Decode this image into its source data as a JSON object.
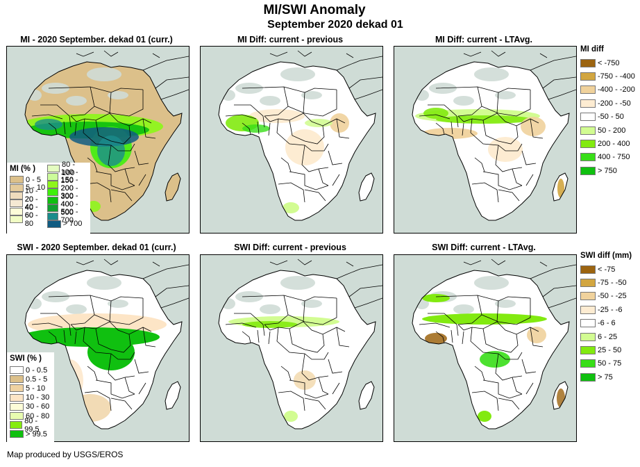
{
  "header": {
    "title": "MI/SWI Anomaly",
    "subtitle": "September 2020 dekad 01"
  },
  "panels": [
    {
      "id": "mi-current",
      "title": "MI - 2020  September. dekad 01 (curr.)",
      "scheme": "mi-current"
    },
    {
      "id": "mi-diff-previous",
      "title": "MI Diff: current - previous",
      "scheme": "mi-diff-prev"
    },
    {
      "id": "mi-diff-ltavg",
      "title": "MI Diff: current - LTAvg.",
      "scheme": "mi-diff-lta"
    },
    {
      "id": "swi-current",
      "title": "SWI - 2020 September. dekad 01 (curr.)",
      "scheme": "swi-current"
    },
    {
      "id": "swi-diff-previous",
      "title": "SWI Diff: current - previous",
      "scheme": "swi-diff-prev"
    },
    {
      "id": "swi-diff-ltavg",
      "title": "SWI Diff: current - LTAvg.",
      "scheme": "swi-diff-lta"
    }
  ],
  "legends": {
    "mi_percent": {
      "title": "MI (% )",
      "col1": [
        {
          "label": "0 - 5",
          "color": "#dcc08a"
        },
        {
          "label": "5 - 10",
          "color": "#e5cb9b"
        },
        {
          "label": "10 - 20",
          "color": "#efdcbd"
        },
        {
          "label": "20 - 40",
          "color": "#f5e9d3"
        },
        {
          "label": "40 - 60",
          "color": "#fdfdd8"
        },
        {
          "label": "60 - 80",
          "color": "#f1fdc4"
        }
      ],
      "col2": [
        {
          "label": "80 - 100",
          "color": "#e4fcc0"
        },
        {
          "label": "100 - 150",
          "color": "#ccfc9a"
        },
        {
          "label": "150 - 200",
          "color": "#8ef51c"
        },
        {
          "label": "200 - 300",
          "color": "#3ff00c"
        },
        {
          "label": "300 - 400",
          "color": "#10c010"
        },
        {
          "label": "400 - 500",
          "color": "#12a030"
        },
        {
          "label": "500 - 700",
          "color": "#1a8c8c"
        },
        {
          "label": "> 700",
          "color": "#115c82"
        }
      ]
    },
    "swi_percent": {
      "title": "SWI (% )",
      "items": [
        {
          "label": "0 - 0.5",
          "color": "#ffffff"
        },
        {
          "label": "0.5 - 5",
          "color": "#dcc08a"
        },
        {
          "label": "5 - 10",
          "color": "#efd2a2"
        },
        {
          "label": "10 - 30",
          "color": "#fde5c6"
        },
        {
          "label": "30 - 60",
          "color": "#fdfdd8"
        },
        {
          "label": "60 - 80",
          "color": "#e8fcb0"
        },
        {
          "label": "80 - 99.5",
          "color": "#86ec10"
        },
        {
          "label": "> 99.5",
          "color": "#10c010"
        }
      ]
    },
    "mi_diff": {
      "title": "MI diff",
      "items": [
        {
          "label": "< -750",
          "color": "#9c6410"
        },
        {
          "label": "-750 - -400",
          "color": "#d2a640"
        },
        {
          "label": "-400 - -200",
          "color": "#f0d29c"
        },
        {
          "label": "-200 - -50",
          "color": "#fdecd2"
        },
        {
          "label": "-50 - 50",
          "color": "#ffffff"
        },
        {
          "label": "50 - 200",
          "color": "#d2fc92"
        },
        {
          "label": "200 - 400",
          "color": "#82ea10"
        },
        {
          "label": "400 - 750",
          "color": "#38de18"
        },
        {
          "label": "> 750",
          "color": "#10c010"
        }
      ]
    },
    "swi_diff": {
      "title": "SWI diff (mm)",
      "items": [
        {
          "label": "< -75",
          "color": "#9c6410"
        },
        {
          "label": "-75 - -50",
          "color": "#d2a640"
        },
        {
          "label": "-50 - -25",
          "color": "#f0d29c"
        },
        {
          "label": "-25 - -6",
          "color": "#fdecd2"
        },
        {
          "label": "-6 - 6",
          "color": "#ffffff"
        },
        {
          "label": "6 - 25",
          "color": "#d2fc92"
        },
        {
          "label": "25 - 50",
          "color": "#82ea10"
        },
        {
          "label": "50 - 75",
          "color": "#38de18"
        },
        {
          "label": "> 75",
          "color": "#10c010"
        }
      ]
    }
  },
  "footer": "Map produced by USGS/EROS"
}
